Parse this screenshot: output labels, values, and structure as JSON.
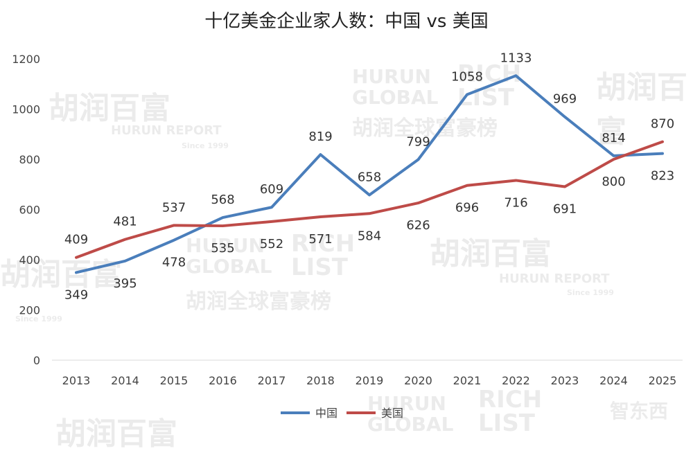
{
  "chart_data": {
    "type": "line",
    "title": "十亿美金企业家人数：中国 vs 美国",
    "categories": [
      "2013",
      "2014",
      "2015",
      "2016",
      "2017",
      "2018",
      "2019",
      "2020",
      "2021",
      "2022",
      "2023",
      "2024",
      "2025"
    ],
    "series": [
      {
        "name": "中国",
        "color": "#4A7EBB",
        "values": [
          349,
          395,
          478,
          568,
          609,
          819,
          658,
          799,
          1058,
          1133,
          969,
          814,
          823
        ]
      },
      {
        "name": "美国",
        "color": "#BE4B48",
        "values": [
          409,
          481,
          537,
          535,
          552,
          571,
          584,
          626,
          696,
          716,
          691,
          800,
          870
        ]
      }
    ],
    "ylim": [
      0,
      1200
    ],
    "yticks": [
      0,
      200,
      400,
      600,
      800,
      1000,
      1200
    ],
    "grid": false,
    "legend_position": "bottom"
  },
  "watermarks": {
    "brand_cn": "胡润百富",
    "brand_en": "HURUN REPORT",
    "since": "Since 1999",
    "hurun_global": "HURUN GLOBAL",
    "rich_list": "RICH LIST",
    "list_cn": "胡润全球富豪榜",
    "corner": "智东西"
  }
}
